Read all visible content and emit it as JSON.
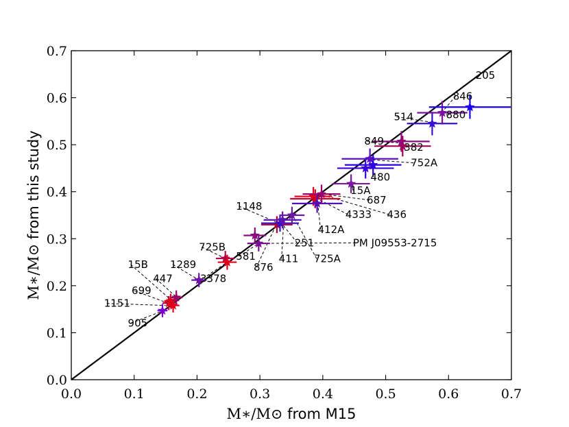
{
  "chart_data": {
    "type": "scatter",
    "title": "",
    "xlabel": {
      "math": "M∗/M⊙",
      "text": " from M15"
    },
    "ylabel": {
      "math": "M∗/M⊙",
      "text": " from this study"
    },
    "xlim": [
      0.0,
      0.7
    ],
    "ylim": [
      0.0,
      0.7
    ],
    "x_ticks": [
      "0.0",
      "0.1",
      "0.2",
      "0.3",
      "0.4",
      "0.5",
      "0.6",
      "0.7"
    ],
    "y_ticks": [
      "0.0",
      "0.1",
      "0.2",
      "0.3",
      "0.4",
      "0.5",
      "0.6",
      "0.7"
    ],
    "grid": false,
    "one_to_one_line": true,
    "points": [
      {
        "x": 0.145,
        "y": 0.147,
        "xerr": 0.008,
        "yerr": 0.014,
        "color": "#7a00cc"
      },
      {
        "x": 0.155,
        "y": 0.163,
        "xerr": 0.01,
        "yerr": 0.015,
        "color": "#c8002a"
      },
      {
        "x": 0.158,
        "y": 0.168,
        "xerr": 0.01,
        "yerr": 0.015,
        "color": "#dd0018"
      },
      {
        "x": 0.162,
        "y": 0.158,
        "xerr": 0.01,
        "yerr": 0.015,
        "color": "#e2001a"
      },
      {
        "x": 0.167,
        "y": 0.175,
        "xerr": 0.01,
        "yerr": 0.015,
        "color": "#9a0066"
      },
      {
        "x": 0.203,
        "y": 0.212,
        "xerr": 0.012,
        "yerr": 0.015,
        "color": "#6f10a8"
      },
      {
        "x": 0.245,
        "y": 0.258,
        "xerr": 0.015,
        "yerr": 0.016,
        "color": "#b0004a"
      },
      {
        "x": 0.248,
        "y": 0.25,
        "xerr": 0.015,
        "yerr": 0.016,
        "color": "#e0001c"
      },
      {
        "x": 0.292,
        "y": 0.307,
        "xerr": 0.018,
        "yerr": 0.017,
        "color": "#8a0a80"
      },
      {
        "x": 0.298,
        "y": 0.29,
        "xerr": 0.018,
        "yerr": 0.017,
        "color": "#7a1090"
      },
      {
        "x": 0.327,
        "y": 0.33,
        "xerr": 0.025,
        "yerr": 0.018,
        "color": "#b4002e"
      },
      {
        "x": 0.332,
        "y": 0.333,
        "xerr": 0.03,
        "yerr": 0.018,
        "color": "#3a10c8"
      },
      {
        "x": 0.336,
        "y": 0.34,
        "xerr": 0.03,
        "yerr": 0.018,
        "color": "#5b14b4"
      },
      {
        "x": 0.351,
        "y": 0.35,
        "xerr": 0.02,
        "yerr": 0.018,
        "color": "#6a1aa0"
      },
      {
        "x": 0.385,
        "y": 0.39,
        "xerr": 0.03,
        "yerr": 0.02,
        "color": "#e20018"
      },
      {
        "x": 0.388,
        "y": 0.385,
        "xerr": 0.04,
        "yerr": 0.02,
        "color": "#d00028"
      },
      {
        "x": 0.391,
        "y": 0.375,
        "xerr": 0.04,
        "yerr": 0.02,
        "color": "#5010b8"
      },
      {
        "x": 0.398,
        "y": 0.395,
        "xerr": 0.03,
        "yerr": 0.02,
        "color": "#9a0070"
      },
      {
        "x": 0.445,
        "y": 0.417,
        "xerr": 0.03,
        "yerr": 0.02,
        "color": "#7a18a0"
      },
      {
        "x": 0.468,
        "y": 0.45,
        "xerr": 0.045,
        "yerr": 0.022,
        "color": "#3a00dd"
      },
      {
        "x": 0.475,
        "y": 0.47,
        "xerr": 0.045,
        "yerr": 0.022,
        "color": "#5a10c4"
      },
      {
        "x": 0.48,
        "y": 0.457,
        "xerr": 0.045,
        "yerr": 0.022,
        "color": "#2a00e0"
      },
      {
        "x": 0.525,
        "y": 0.507,
        "xerr": 0.045,
        "yerr": 0.022,
        "color": "#8a0a80"
      },
      {
        "x": 0.527,
        "y": 0.497,
        "xerr": 0.045,
        "yerr": 0.022,
        "color": "#a0005a"
      },
      {
        "x": 0.574,
        "y": 0.545,
        "xerr": 0.04,
        "yerr": 0.025,
        "color": "#3a10d0"
      },
      {
        "x": 0.59,
        "y": 0.568,
        "xerr": 0.04,
        "yerr": 0.025,
        "color": "#7a10a0"
      },
      {
        "x": 0.634,
        "y": 0.58,
        "xerr": 0.065,
        "yerr": 0.025,
        "color": "#1a00f0"
      }
    ],
    "annotations": [
      {
        "text": "205",
        "tx": 0.643,
        "ty": 0.64,
        "ax": null,
        "ay": null
      },
      {
        "text": "846",
        "tx": 0.607,
        "ty": 0.596,
        "ax": 0.59,
        "ay": 0.57
      },
      {
        "text": "880",
        "tx": 0.596,
        "ty": 0.556,
        "ax": 0.588,
        "ay": 0.566
      },
      {
        "text": "514",
        "tx": 0.513,
        "ty": 0.552,
        "ax": 0.572,
        "ay": 0.548
      },
      {
        "text": "849",
        "tx": 0.466,
        "ty": 0.5,
        "ax": 0.524,
        "ay": 0.504
      },
      {
        "text": "382",
        "tx": 0.529,
        "ty": 0.487,
        "ax": 0.527,
        "ay": 0.5
      },
      {
        "text": "752A",
        "tx": 0.54,
        "ty": 0.454,
        "ax": 0.478,
        "ay": 0.468
      },
      {
        "text": "480",
        "tx": 0.476,
        "ty": 0.424,
        "ax": 0.479,
        "ay": 0.455
      },
      {
        "text": "15A",
        "tx": 0.444,
        "ty": 0.395,
        "ax": 0.446,
        "ay": 0.415
      },
      {
        "text": "687",
        "tx": 0.47,
        "ty": 0.375,
        "ax": 0.4,
        "ay": 0.395
      },
      {
        "text": "436",
        "tx": 0.502,
        "ty": 0.344,
        "ax": 0.402,
        "ay": 0.392
      },
      {
        "text": "4333",
        "tx": 0.436,
        "ty": 0.344,
        "ax": 0.39,
        "ay": 0.386
      },
      {
        "text": "412A",
        "tx": 0.392,
        "ty": 0.312,
        "ax": 0.392,
        "ay": 0.375
      },
      {
        "text": "1148",
        "tx": 0.262,
        "ty": 0.362,
        "ax": 0.33,
        "ay": 0.333
      },
      {
        "text": "251",
        "tx": 0.355,
        "ty": 0.284,
        "ax": 0.333,
        "ay": 0.335
      },
      {
        "text": "PM J09553-2715",
        "tx": 0.448,
        "ty": 0.284,
        "ax": 0.3,
        "ay": 0.29
      },
      {
        "text": "725B",
        "tx": 0.203,
        "ty": 0.275,
        "ax": 0.245,
        "ay": 0.258
      },
      {
        "text": "581",
        "tx": 0.262,
        "ty": 0.255,
        "ax": 0.298,
        "ay": 0.29
      },
      {
        "text": "411",
        "tx": 0.33,
        "ty": 0.25,
        "ax": 0.338,
        "ay": 0.338
      },
      {
        "text": "725A",
        "tx": 0.386,
        "ty": 0.25,
        "ax": 0.352,
        "ay": 0.35
      },
      {
        "text": "876",
        "tx": 0.29,
        "ty": 0.232,
        "ax": 0.326,
        "ay": 0.33
      },
      {
        "text": "1289",
        "tx": 0.157,
        "ty": 0.238,
        "ax": 0.202,
        "ay": 0.213
      },
      {
        "text": "3378",
        "tx": 0.205,
        "ty": 0.208,
        "ax": 0.248,
        "ay": 0.25
      },
      {
        "text": "15B",
        "tx": 0.09,
        "ty": 0.238,
        "ax": 0.16,
        "ay": 0.168
      },
      {
        "text": "447",
        "tx": 0.13,
        "ty": 0.208,
        "ax": 0.167,
        "ay": 0.176
      },
      {
        "text": "699",
        "tx": 0.096,
        "ty": 0.182,
        "ax": 0.156,
        "ay": 0.162
      },
      {
        "text": "1151",
        "tx": 0.052,
        "ty": 0.155,
        "ax": 0.15,
        "ay": 0.158
      },
      {
        "text": "905",
        "tx": 0.09,
        "ty": 0.113,
        "ax": 0.145,
        "ay": 0.146
      }
    ]
  }
}
